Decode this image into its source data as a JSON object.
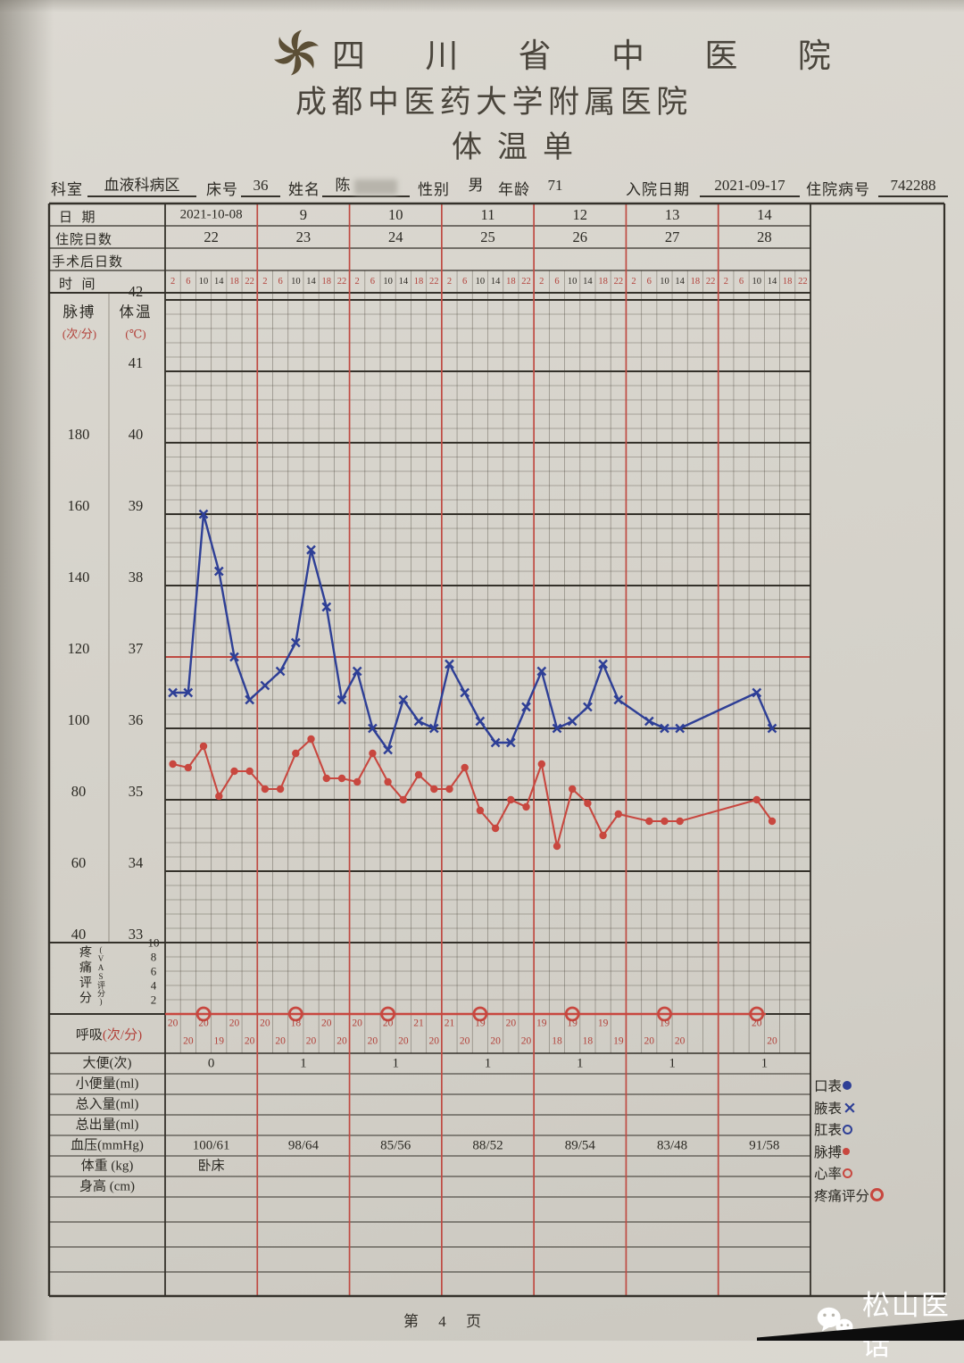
{
  "page": {
    "footer": "第 4 页",
    "watermark": "松山医话",
    "watermark_icon": "wechat-icon",
    "logo_icon": "hospital-pinwheel-logo"
  },
  "header": {
    "hospital_1": "四川省中医院",
    "hospital_2": "成都中医药大学附属医院",
    "sheet_title": "体温单"
  },
  "patient": {
    "dept_label": "科室",
    "dept": "血液科病区",
    "bed_label": "床号",
    "bed": "36",
    "name_label": "姓名",
    "name": "陈",
    "name_redacted": true,
    "sex_label": "性别",
    "sex": "男",
    "age_label": "年龄",
    "age": "71",
    "admit_label": "入院日期",
    "admit_date": "2021-09-17",
    "id_label": "住院病号",
    "id": "742288"
  },
  "table": {
    "row_labels": {
      "date": "日  期",
      "hosp_day": "住院日数",
      "postop_day": "手术后日数",
      "time": "时  间"
    },
    "dates": [
      "2021-10-08",
      "9",
      "10",
      "11",
      "12",
      "13",
      "14"
    ],
    "hosp_days": [
      "22",
      "23",
      "24",
      "25",
      "26",
      "27",
      "28"
    ],
    "postop_days": [
      "",
      "",
      "",
      "",
      "",
      "",
      ""
    ],
    "times": [
      "2",
      "6",
      "10",
      "14",
      "18",
      "22"
    ],
    "time_red_indices": [
      0,
      1,
      4,
      5
    ],
    "axis": {
      "pulse_label": "脉搏",
      "pulse_unit": "(次/分)",
      "temp_label": "体温",
      "temp_unit": "(℃)",
      "pulse_ticks": [
        "180",
        "160",
        "140",
        "120",
        "100",
        "80",
        "60",
        "40"
      ],
      "temp_ticks": [
        "42",
        "41",
        "40",
        "39",
        "38",
        "37",
        "36",
        "35",
        "34",
        "33"
      ],
      "pain_label": "疼痛评分",
      "pain_sublabel": "(VAS评分)",
      "pain_ticks": [
        "10",
        "8",
        "6",
        "4",
        "2"
      ]
    },
    "resp_label": "呼吸",
    "resp_unit": "(次/分)",
    "bottom_rows": [
      {
        "label": "大便(次)",
        "values": [
          "0",
          "1",
          "1",
          "1",
          "1",
          "1",
          "1"
        ]
      },
      {
        "label": "小便量(ml)",
        "values": [
          "",
          "",
          "",
          "",
          "",
          "",
          ""
        ]
      },
      {
        "label": "总入量(ml)",
        "values": [
          "",
          "",
          "",
          "",
          "",
          "",
          ""
        ]
      },
      {
        "label": "总出量(ml)",
        "values": [
          "",
          "",
          "",
          "",
          "",
          "",
          ""
        ]
      },
      {
        "label": "血压(mmHg)",
        "values": [
          "100/61",
          "98/64",
          "85/56",
          "88/52",
          "89/54",
          "83/48",
          "91/58"
        ]
      },
      {
        "label": "体重 (kg)",
        "values": [
          "卧床",
          "",
          "",
          "",
          "",
          "",
          ""
        ]
      },
      {
        "label": "身高 (cm)",
        "values": [
          "",
          "",
          "",
          "",
          "",
          "",
          ""
        ]
      }
    ],
    "legend": [
      {
        "label": "口表",
        "marker": "dot-filled",
        "color": "#2e3f96"
      },
      {
        "label": "腋表",
        "marker": "x",
        "color": "#2e3f96"
      },
      {
        "label": "肛表",
        "marker": "ring",
        "color": "#2e3f96"
      },
      {
        "label": "脉搏",
        "marker": "dot-filled-small",
        "color": "#c8473f"
      },
      {
        "label": "心率",
        "marker": "ring",
        "color": "#c8473f"
      },
      {
        "label": "疼痛评分",
        "marker": "ring-large",
        "color": "#c8473f"
      }
    ]
  },
  "chart_data": {
    "type": "line",
    "title": "体温单 vital-signs chart",
    "dates": [
      "2021-10-08",
      "9",
      "10",
      "11",
      "12",
      "13",
      "14"
    ],
    "slots_per_day": [
      "2",
      "6",
      "10",
      "14",
      "18",
      "22"
    ],
    "temp_axis": {
      "label": "体温(℃)",
      "min": 33,
      "max": 42,
      "major_step": 1,
      "minor_step": 0.2
    },
    "pulse_axis": {
      "label": "脉搏(次/分)",
      "min": 40,
      "max": 180,
      "major_step": 20
    },
    "pain_axis": {
      "label": "疼痛评分(VAS评分)",
      "min": 0,
      "max": 10,
      "step": 2
    },
    "grid": true,
    "reference_line": {
      "value": 37,
      "color": "#c0443c"
    },
    "series": [
      {
        "name": "体温(腋表)",
        "marker": "x",
        "color": "#2e3f96",
        "point_format": "[day,slot,celsius]",
        "points": [
          [
            0,
            0,
            36.5
          ],
          [
            0,
            1,
            36.5
          ],
          [
            0,
            2,
            39.0
          ],
          [
            0,
            3,
            38.2
          ],
          [
            0,
            4,
            37.0
          ],
          [
            0,
            5,
            36.4
          ],
          [
            1,
            0,
            36.6
          ],
          [
            1,
            1,
            36.8
          ],
          [
            1,
            2,
            37.2
          ],
          [
            1,
            3,
            38.5
          ],
          [
            1,
            4,
            37.7
          ],
          [
            1,
            5,
            36.4
          ],
          [
            2,
            0,
            36.8
          ],
          [
            2,
            1,
            36.0
          ],
          [
            2,
            2,
            35.7
          ],
          [
            2,
            3,
            36.4
          ],
          [
            2,
            4,
            36.1
          ],
          [
            2,
            5,
            36.0
          ],
          [
            3,
            0,
            36.9
          ],
          [
            3,
            1,
            36.5
          ],
          [
            3,
            2,
            36.1
          ],
          [
            3,
            3,
            35.8
          ],
          [
            3,
            4,
            35.8
          ],
          [
            3,
            5,
            36.3
          ],
          [
            4,
            0,
            36.8
          ],
          [
            4,
            1,
            36.0
          ],
          [
            4,
            2,
            36.1
          ],
          [
            4,
            3,
            36.3
          ],
          [
            4,
            4,
            36.9
          ],
          [
            4,
            5,
            36.4
          ],
          [
            5,
            1,
            36.1
          ],
          [
            5,
            2,
            36.0
          ],
          [
            5,
            3,
            36.0
          ],
          [
            6,
            2,
            36.5
          ],
          [
            6,
            3,
            36.0
          ]
        ]
      },
      {
        "name": "脉搏",
        "marker": "dot",
        "color": "#c8473f",
        "point_format": "[day,slot,bpm]",
        "points": [
          [
            0,
            0,
            90
          ],
          [
            0,
            1,
            89
          ],
          [
            0,
            2,
            95
          ],
          [
            0,
            3,
            81
          ],
          [
            0,
            4,
            88
          ],
          [
            0,
            5,
            88
          ],
          [
            1,
            0,
            83
          ],
          [
            1,
            1,
            83
          ],
          [
            1,
            2,
            93
          ],
          [
            1,
            3,
            97
          ],
          [
            1,
            4,
            86
          ],
          [
            1,
            5,
            86
          ],
          [
            2,
            0,
            85
          ],
          [
            2,
            1,
            93
          ],
          [
            2,
            2,
            85
          ],
          [
            2,
            3,
            80
          ],
          [
            2,
            4,
            87
          ],
          [
            2,
            5,
            83
          ],
          [
            3,
            0,
            83
          ],
          [
            3,
            1,
            89
          ],
          [
            3,
            2,
            77
          ],
          [
            3,
            3,
            72
          ],
          [
            3,
            4,
            80
          ],
          [
            3,
            5,
            78
          ],
          [
            4,
            0,
            90
          ],
          [
            4,
            1,
            67
          ],
          [
            4,
            2,
            83
          ],
          [
            4,
            3,
            79
          ],
          [
            4,
            4,
            70
          ],
          [
            4,
            5,
            76
          ],
          [
            5,
            1,
            74
          ],
          [
            5,
            2,
            74
          ],
          [
            5,
            3,
            74
          ],
          [
            6,
            2,
            80
          ],
          [
            6,
            3,
            74
          ]
        ]
      },
      {
        "name": "疼痛评分",
        "marker": "ring",
        "color": "#c8473f",
        "point_format": "[day,slot,score]",
        "points": [
          [
            0,
            2,
            0
          ],
          [
            1,
            2,
            0
          ],
          [
            2,
            2,
            0
          ],
          [
            3,
            2,
            0
          ],
          [
            4,
            2,
            0
          ],
          [
            5,
            2,
            0
          ],
          [
            6,
            2,
            0
          ]
        ]
      }
    ],
    "respiration": {
      "name": "呼吸(次/分)",
      "color": "#c8473f",
      "point_format": "[day,slot,breaths/min]",
      "points": [
        [
          0,
          0,
          20
        ],
        [
          0,
          1,
          20
        ],
        [
          0,
          2,
          20
        ],
        [
          0,
          3,
          19
        ],
        [
          0,
          4,
          20
        ],
        [
          0,
          5,
          20
        ],
        [
          1,
          0,
          20
        ],
        [
          1,
          1,
          20
        ],
        [
          1,
          2,
          18
        ],
        [
          1,
          3,
          20
        ],
        [
          1,
          4,
          20
        ],
        [
          1,
          5,
          20
        ],
        [
          2,
          0,
          20
        ],
        [
          2,
          1,
          20
        ],
        [
          2,
          2,
          20
        ],
        [
          2,
          3,
          20
        ],
        [
          2,
          4,
          21
        ],
        [
          2,
          5,
          20
        ],
        [
          3,
          0,
          21
        ],
        [
          3,
          1,
          20
        ],
        [
          3,
          2,
          19
        ],
        [
          3,
          3,
          20
        ],
        [
          3,
          4,
          20
        ],
        [
          3,
          5,
          20
        ],
        [
          4,
          0,
          19
        ],
        [
          4,
          1,
          18
        ],
        [
          4,
          2,
          19
        ],
        [
          4,
          3,
          18
        ],
        [
          4,
          4,
          19
        ],
        [
          4,
          5,
          19
        ],
        [
          5,
          1,
          20
        ],
        [
          5,
          2,
          19
        ],
        [
          5,
          3,
          20
        ],
        [
          6,
          2,
          20
        ],
        [
          6,
          3,
          20
        ]
      ]
    }
  }
}
